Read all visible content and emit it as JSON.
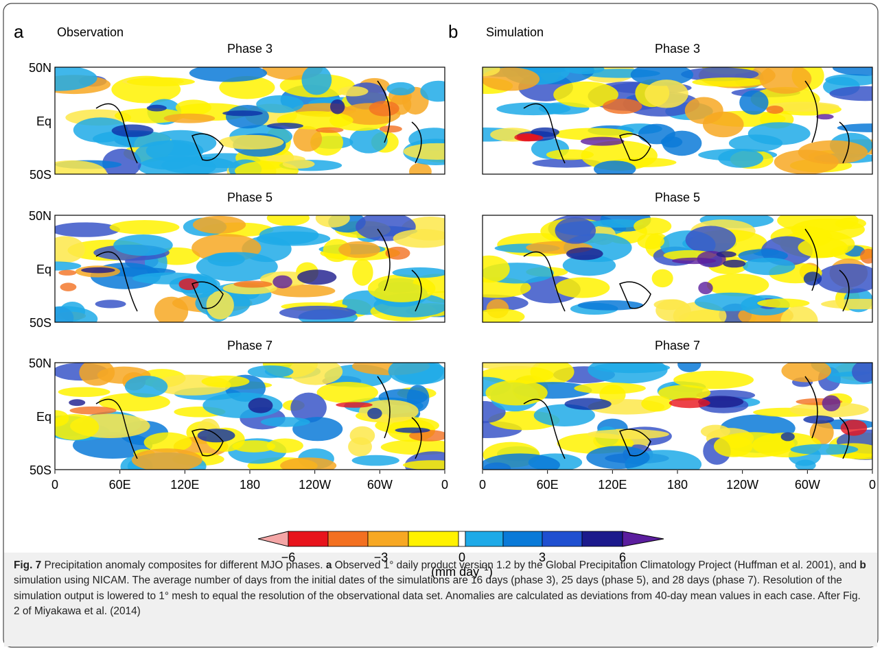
{
  "panels": [
    {
      "label": "a",
      "title": "Observation",
      "phases": [
        "Phase 3",
        "Phase 5",
        "Phase 7"
      ]
    },
    {
      "label": "b",
      "title": "Simulation",
      "phases": [
        "Phase 3",
        "Phase 5",
        "Phase 7"
      ]
    }
  ],
  "y_labels": [
    "50N",
    "Eq",
    "50S"
  ],
  "x_labels": [
    "0",
    "60E",
    "120E",
    "180",
    "120W",
    "60W",
    "0"
  ],
  "colorbar": {
    "ticks": [
      "−6",
      "−3",
      "0",
      "3",
      "6"
    ],
    "unit": "(mm day",
    "unit_sup": "−1",
    "unit_end": ")"
  },
  "caption": {
    "label": "Fig. 7",
    "part1": " Precipitation anomaly composites for different MJO phases. ",
    "a": "a",
    "part2": " Observed 1° daily product version 1.2 by the Global Precipitation Climatology Project (Huffman et al. 2001), and ",
    "b": "b",
    "part3": " simulation using NICAM. The average number of days from the initial dates of the simulations are 16 days (phase 3), 25 days (phase 5), and 28 days (phase 7). Resolution of the simulation output is lowered to 1° mesh to equal the resolution of the observational data set. Anomalies are calculated as deviations from 40-day mean values in each case. After Fig. 2 of Miyakawa et al. (2014)"
  }
}
